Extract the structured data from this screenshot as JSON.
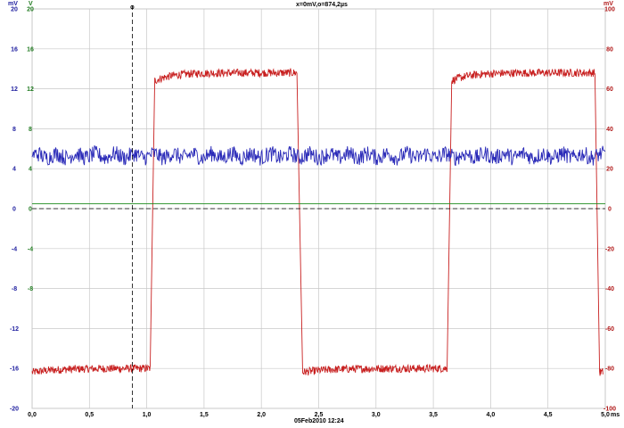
{
  "header": {
    "cursor_readout": "x=0mV,o=874,2µs",
    "left_unit_mv": "mV",
    "left_unit_v": "V",
    "right_unit": "mV",
    "x_unit": "ms",
    "timestamp": "05Feb2010  12:24"
  },
  "colors": {
    "blue_trace": "#2a2ab8",
    "red_trace": "#c82020",
    "green_trace": "#1e8c1e",
    "grid": "#c8c8c8",
    "axis_blue": "#2020a0",
    "axis_green": "#1e7a1e",
    "axis_red": "#b01818"
  },
  "chart_data": {
    "type": "line",
    "grid": true,
    "x": {
      "label": "ms",
      "range": [
        0,
        5.0
      ],
      "ticks": [
        "0,0",
        "0,5",
        "1,0",
        "1,5",
        "2,0",
        "2,5",
        "3,0",
        "3,5",
        "4,0",
        "4,5",
        "5,0"
      ]
    },
    "axes": {
      "left_mv": {
        "unit": "mV",
        "range": [
          -20,
          20
        ],
        "ticks": [
          "20",
          "16",
          "12",
          "8",
          "4",
          "0",
          "-4",
          "-8",
          "-12",
          "-16",
          "-20"
        ]
      },
      "left_v": {
        "unit": "V",
        "range": [
          -20,
          20
        ],
        "ticks": [
          "20",
          "16",
          "12",
          "8",
          "4",
          "0",
          "-4",
          "-8",
          "-12",
          "-16",
          "-20"
        ],
        "shown": [
          "20",
          "16",
          "12",
          "8",
          "4",
          "0",
          "-4",
          "-8"
        ]
      },
      "right_mv": {
        "unit": "mV",
        "range": [
          -100,
          100
        ],
        "ticks": [
          "100",
          "80",
          "60",
          "40",
          "20",
          "0",
          "-20",
          "-40",
          "-60",
          "-80",
          "-100"
        ]
      }
    },
    "cursor": {
      "x": 0.874,
      "y": 0
    },
    "series": [
      {
        "color": "#c82020",
        "axis": "right_mv",
        "shape": "square_wave",
        "high": 68,
        "low": -80,
        "noise": 2.0,
        "segments": [
          {
            "from": 0.0,
            "to": 1.03,
            "level": "low"
          },
          {
            "from": 1.07,
            "to": 2.31,
            "level": "high"
          },
          {
            "from": 2.36,
            "to": 3.62,
            "level": "low"
          },
          {
            "from": 3.66,
            "to": 4.91,
            "level": "high"
          },
          {
            "from": 4.95,
            "to": 4.98,
            "level": "low"
          }
        ]
      },
      {
        "color": "#2a2ab8",
        "axis": "left_mv",
        "shape": "noise",
        "mean": 5.3,
        "amplitude": 0.8
      },
      {
        "color": "#1e8c1e",
        "axis": "left_v",
        "shape": "flat",
        "value": 0.5
      }
    ]
  }
}
